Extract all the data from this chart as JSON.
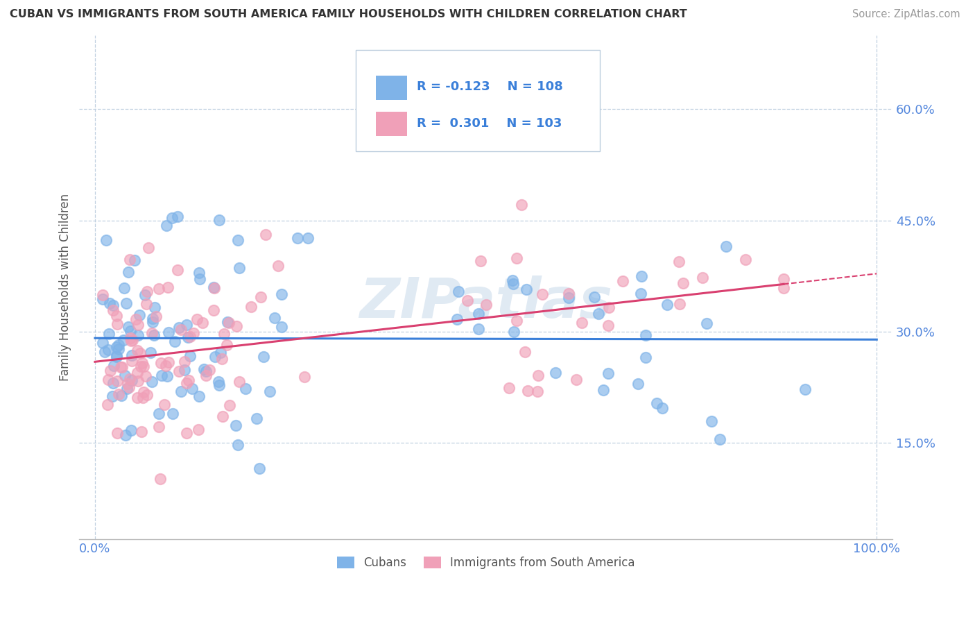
{
  "title": "CUBAN VS IMMIGRANTS FROM SOUTH AMERICA FAMILY HOUSEHOLDS WITH CHILDREN CORRELATION CHART",
  "source": "Source: ZipAtlas.com",
  "ylabel": "Family Households with Children",
  "xlim": [
    -0.02,
    1.02
  ],
  "ylim": [
    0.02,
    0.7
  ],
  "yticks": [
    0.15,
    0.3,
    0.45,
    0.6
  ],
  "xticks": [
    0.0,
    1.0
  ],
  "xtick_labels": [
    "0.0%",
    "100.0%"
  ],
  "ytick_labels": [
    "15.0%",
    "30.0%",
    "45.0%",
    "60.0%"
  ],
  "cubans_R": -0.123,
  "cubans_N": 108,
  "sa_R": 0.301,
  "sa_N": 103,
  "cubans_color": "#7fb3e8",
  "sa_color": "#f0a0b8",
  "cubans_line_color": "#3a7fd9",
  "sa_line_color": "#d94070",
  "grid_color": "#c0d0e0",
  "title_color": "#333333",
  "tick_color": "#5588dd",
  "legend_text_color": "#3a7fd9",
  "watermark_color": "#ccdcec",
  "legend_box_color": "#e8eef5"
}
